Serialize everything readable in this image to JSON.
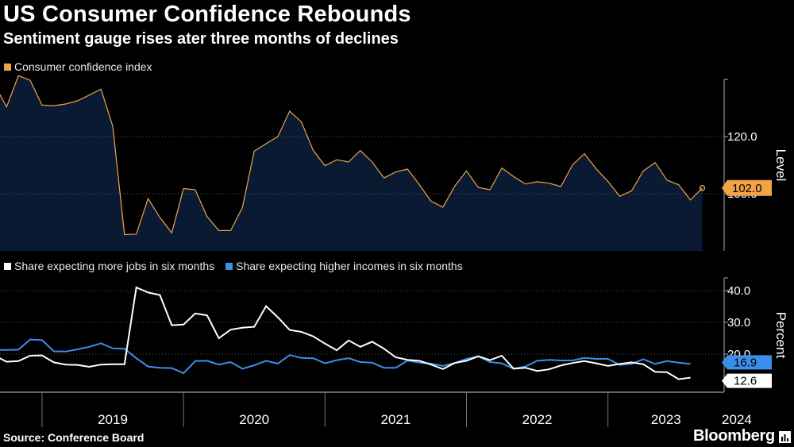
{
  "title": "US Consumer Confidence Rebounds",
  "subtitle": "Sentiment gauge rises ater three months of declines",
  "source": "Source: Conference Board",
  "brand": "Bloomberg",
  "colors": {
    "confidence": "#f0a446",
    "jobs": "#ffffff",
    "incomes": "#3a8fe8",
    "area": "#0b1a33",
    "background": "#000000"
  },
  "chart_data": [
    {
      "type": "area",
      "legend": [
        "Consumer confidence index"
      ],
      "ylabel": "Level",
      "ylim": [
        80,
        140
      ],
      "yticks": [
        100,
        120
      ],
      "last_value_label": "102.0",
      "x_start": "2018-09",
      "series": [
        {
          "name": "Consumer confidence index",
          "values": [
            137.9,
            130.4,
            141.3,
            139.7,
            131.0,
            130.8,
            131.4,
            132.5,
            134.5,
            136.6,
            123.6,
            85.7,
            85.9,
            98.3,
            91.7,
            86.3,
            101.8,
            101.4,
            92.0,
            87.1,
            87.1,
            95.2,
            114.9,
            117.5,
            120.0,
            128.9,
            125.1,
            115.2,
            109.8,
            111.9,
            111.1,
            115.1,
            111.1,
            105.5,
            107.6,
            108.6,
            103.2,
            97.4,
            95.3,
            102.6,
            108.0,
            102.2,
            101.4,
            109.0,
            106.0,
            103.4,
            104.2,
            103.7,
            102.5,
            110.1,
            114.0,
            108.7,
            104.3,
            99.1,
            101.0,
            108.0,
            110.9,
            104.8,
            103.1,
            97.8,
            102.0
          ]
        }
      ]
    },
    {
      "type": "line",
      "legend": [
        "Share expecting more jobs in six months",
        "Share expecting higher incomes in six months"
      ],
      "ylabel": "Percent",
      "ylim": [
        8,
        44
      ],
      "yticks": [
        20.0,
        30.0,
        40.0
      ],
      "x_start": "2018-09",
      "xticks": [
        "2019",
        "2020",
        "2021",
        "2022",
        "2023",
        "2024"
      ],
      "series": [
        {
          "name": "Share expecting more jobs in six months",
          "last_value_label": "12.6",
          "values": [
            19.5,
            17.6,
            17.8,
            19.5,
            19.6,
            17.4,
            16.7,
            16.6,
            16.0,
            16.7,
            16.8,
            16.8,
            41.0,
            39.4,
            38.6,
            29.1,
            29.3,
            32.8,
            32.2,
            25.0,
            27.7,
            28.3,
            28.6,
            35.1,
            31.6,
            27.6,
            27.0,
            25.6,
            23.3,
            21.2,
            24.3,
            22.3,
            23.9,
            21.7,
            19.0,
            18.2,
            17.9,
            16.7,
            15.3,
            17.2,
            17.9,
            19.3,
            18.1,
            19.5,
            15.4,
            15.7,
            14.7,
            15.2,
            16.4,
            17.2,
            17.8,
            17.1,
            16.3,
            16.9,
            17.4,
            16.8,
            14.4,
            14.3,
            12.1,
            12.6
          ]
        },
        {
          "name": "Share expecting higher incomes in six months",
          "last_value_label": "16.9",
          "values": [
            21.3,
            21.3,
            21.4,
            24.6,
            24.4,
            20.9,
            20.8,
            21.5,
            22.3,
            23.4,
            21.8,
            21.7,
            18.7,
            16.1,
            15.7,
            15.6,
            14.0,
            17.8,
            17.9,
            16.7,
            17.5,
            15.4,
            16.5,
            17.9,
            17.0,
            19.7,
            18.8,
            18.7,
            17.1,
            18.1,
            18.7,
            17.5,
            17.3,
            15.7,
            15.7,
            18.0,
            17.3,
            17.0,
            16.3,
            17.2,
            18.5,
            19.3,
            17.5,
            17.1,
            15.4,
            16.1,
            17.9,
            18.2,
            18.0,
            18.0,
            18.8,
            18.5,
            18.5,
            16.6,
            16.9,
            18.4,
            16.9,
            17.8,
            17.3,
            16.9
          ]
        }
      ]
    }
  ]
}
